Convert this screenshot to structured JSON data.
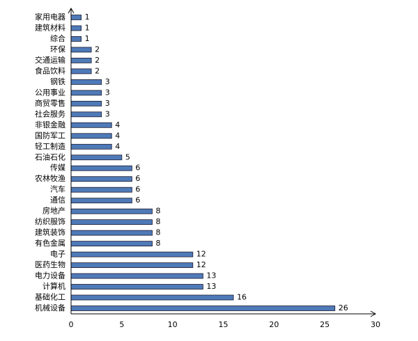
{
  "chart_data": {
    "type": "bar",
    "orientation": "horizontal",
    "categories": [
      "家用电器",
      "建筑材料",
      "综合",
      "环保",
      "交通运输",
      "食品饮料",
      "钢铁",
      "公用事业",
      "商贸零售",
      "社会服务",
      "非银金融",
      "国防军工",
      "轻工制造",
      "石油石化",
      "传媒",
      "农林牧渔",
      "汽车",
      "通信",
      "房地产",
      "纺织服饰",
      "建筑装饰",
      "有色金属",
      "电子",
      "医药生物",
      "电力设备",
      "计算机",
      "基础化工",
      "机械设备"
    ],
    "values": [
      1,
      1,
      1,
      2,
      2,
      2,
      3,
      3,
      3,
      3,
      4,
      4,
      4,
      5,
      6,
      6,
      6,
      6,
      8,
      8,
      8,
      8,
      12,
      12,
      13,
      13,
      16,
      26
    ],
    "value_labels": [
      "1",
      "1",
      "1",
      "2",
      "2",
      "2",
      "3",
      "3",
      "3",
      "3",
      "4",
      "4",
      "4",
      "5",
      "6",
      "6",
      "6",
      "6",
      "8",
      "8",
      "8",
      "8",
      "12",
      "12",
      "13",
      "13",
      "16",
      "26"
    ],
    "xlim": [
      0,
      30
    ],
    "xticks": [
      0,
      5,
      10,
      15,
      20,
      25,
      30
    ],
    "xtick_labels": [
      "0",
      "5",
      "10",
      "15",
      "20",
      "25",
      "30"
    ],
    "title": "",
    "xlabel": "",
    "ylabel": "",
    "grid": false,
    "legend": "none",
    "bar_color": "#4f7ab8"
  }
}
